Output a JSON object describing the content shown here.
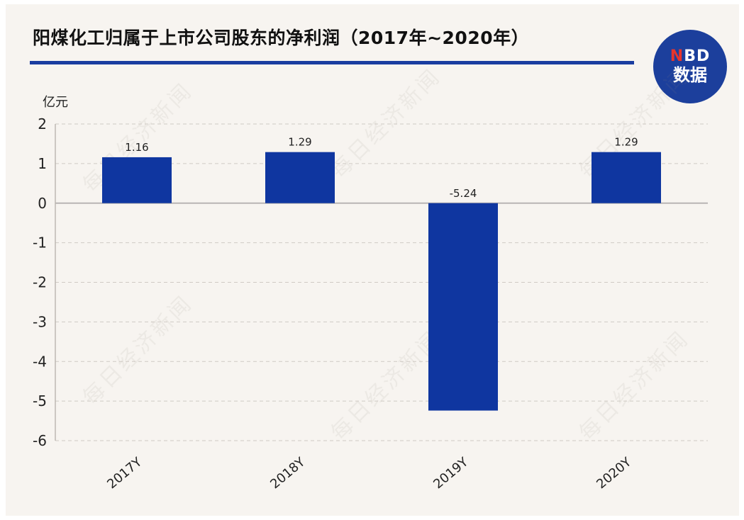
{
  "header": {
    "title": "阳煤化工归属于上市公司股东的净利润（2017年~2020年）"
  },
  "logo": {
    "top_text_accent": "N",
    "top_text_rest": "BD",
    "bottom_text": "数据",
    "bg_color": "#1c3f9c",
    "accent_color": "#e8352c"
  },
  "watermark_text": "每日经济新闻",
  "colors": {
    "bar": "#0f36a0",
    "title_rule": "#1a3da0",
    "background": "#f7f4f0",
    "grid": "#cfcac4"
  },
  "chart_data": {
    "type": "bar",
    "title": "阳煤化工归属于上市公司股东的净利润（2017年~2020年）",
    "unit_label": "亿元",
    "categories": [
      "2017Y",
      "2018Y",
      "2019Y",
      "2020Y"
    ],
    "values": [
      1.16,
      1.29,
      -5.24,
      1.29
    ],
    "data_labels": [
      "1.16",
      "1.29",
      "-5.24",
      "1.29"
    ],
    "ylim": [
      -6,
      2
    ],
    "yticks": [
      2,
      1,
      0,
      -1,
      -2,
      -3,
      -4,
      -5,
      -6
    ],
    "grid": true,
    "legend": "none"
  }
}
